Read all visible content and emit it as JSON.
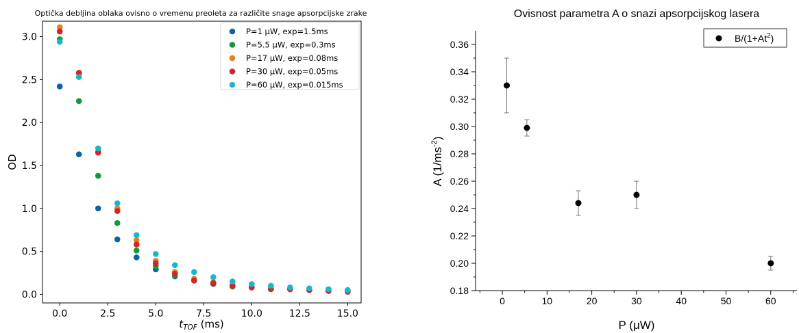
{
  "chart_data": [
    {
      "type": "scatter",
      "title": "Optička debljina oblaka ovisno o vremenu preoleta za različite snage apsorpcijske zrake",
      "xlabel": "t_TOF (ms)",
      "xlabel_main": "t",
      "xlabel_sub": "TOF",
      "xlabel_unit": " (ms)",
      "ylabel": "OD",
      "xlim": [
        -0.9,
        15.7
      ],
      "ylim": [
        -0.1,
        3.18
      ],
      "xticks": [
        0.0,
        2.5,
        5.0,
        7.5,
        10.0,
        12.5,
        15.0
      ],
      "xtick_labels": [
        "0.0",
        "2.5",
        "5.0",
        "7.5",
        "10.0",
        "12.5",
        "15.0"
      ],
      "yticks": [
        0.0,
        0.5,
        1.0,
        1.5,
        2.0,
        2.5,
        3.0
      ],
      "ytick_labels": [
        "0.0",
        "0.5",
        "1.0",
        "1.5",
        "2.0",
        "2.5",
        "3.0"
      ],
      "legend_position": "top-right",
      "x": [
        0,
        1,
        2,
        3,
        4,
        5,
        6,
        7,
        8,
        9,
        10,
        11,
        12,
        13,
        14,
        15
      ],
      "series": [
        {
          "name": "P=1 μW, exp=1.5ms",
          "color": "#0b63a4",
          "values": [
            2.42,
            1.63,
            1.0,
            0.64,
            0.43,
            0.29,
            0.21,
            0.16,
            0.12,
            0.1,
            0.08,
            0.07,
            0.06,
            0.05,
            0.04,
            0.04
          ]
        },
        {
          "name": "P=5.5 μW, exp=0.3ms",
          "color": "#0f9a3c",
          "values": [
            2.97,
            2.25,
            1.38,
            0.83,
            0.51,
            0.33,
            0.22,
            0.16,
            0.12,
            0.09,
            0.08,
            0.07,
            0.06,
            0.05,
            0.04,
            0.04
          ]
        },
        {
          "name": "P=17 μW, exp=0.08ms",
          "color": "#e97d1f",
          "values": [
            3.11,
            2.57,
            1.66,
            1.0,
            0.63,
            0.39,
            0.26,
            0.18,
            0.14,
            0.11,
            0.09,
            0.07,
            0.06,
            0.05,
            0.05,
            0.04
          ]
        },
        {
          "name": "P=30 μW, exp=0.05ms",
          "color": "#d62326",
          "values": [
            3.06,
            2.58,
            1.65,
            0.97,
            0.58,
            0.36,
            0.24,
            0.16,
            0.13,
            0.1,
            0.08,
            0.06,
            0.06,
            0.05,
            0.04,
            0.03
          ]
        },
        {
          "name": "P=60 μW, exp=0.015ms",
          "color": "#14b8cf",
          "values": [
            2.94,
            2.53,
            1.7,
            1.06,
            0.69,
            0.47,
            0.34,
            0.26,
            0.2,
            0.15,
            0.12,
            0.1,
            0.08,
            0.07,
            0.06,
            0.05
          ]
        }
      ]
    },
    {
      "type": "scatter",
      "title": "Ovisnost parametra A o snazi apsorpcijskog lasera",
      "xlabel": "P (μW)",
      "ylabel": "A (1/ms²)",
      "ylabel_main": "A (1/ms",
      "ylabel_sup": "-2",
      "ylabel_end": ")",
      "xlim": [
        -8,
        66
      ],
      "ylim": [
        0.18,
        0.37
      ],
      "xticks": [
        0,
        10,
        20,
        30,
        40,
        50,
        60
      ],
      "xtick_labels": [
        "0",
        "10",
        "20",
        "30",
        "40",
        "50",
        "60"
      ],
      "yticks": [
        0.18,
        0.2,
        0.22,
        0.24,
        0.26,
        0.28,
        0.3,
        0.32,
        0.34,
        0.36
      ],
      "ytick_labels": [
        "0.18",
        "0.20",
        "0.22",
        "0.24",
        "0.26",
        "0.28",
        "0.30",
        "0.32",
        "0.34",
        "0.36"
      ],
      "legend_position": "top-right",
      "series": [
        {
          "name": "B/(1+At²)",
          "name_main": "B/(1+At",
          "name_sup": "2",
          "name_end": ")",
          "color": "#000000",
          "x": [
            1,
            5.5,
            17,
            30,
            60
          ],
          "values": [
            0.33,
            0.299,
            0.244,
            0.25,
            0.2
          ],
          "error": [
            0.02,
            0.006,
            0.009,
            0.01,
            0.005
          ]
        }
      ]
    }
  ]
}
